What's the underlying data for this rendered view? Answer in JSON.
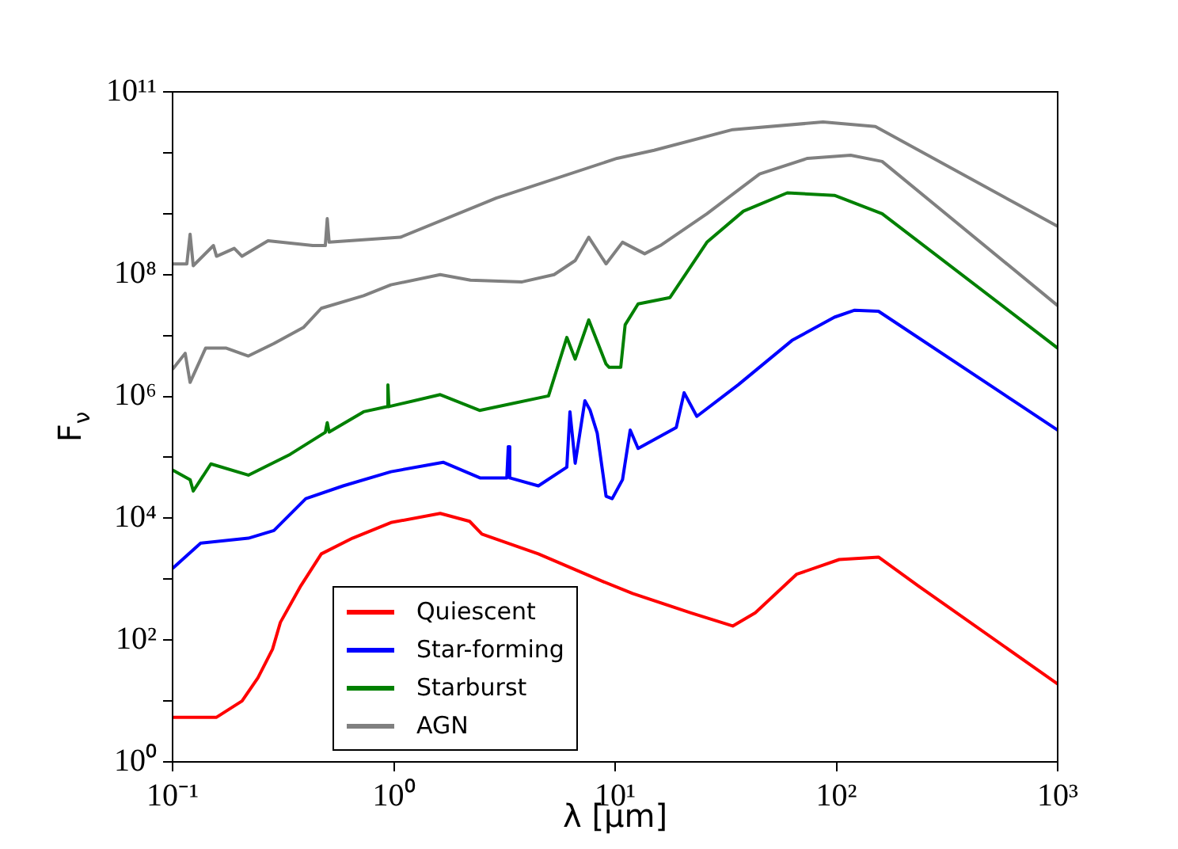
{
  "chart_data": {
    "type": "line",
    "xlabel": "λ [μm]",
    "ylabel": "F$_{ν}$",
    "log": "xy",
    "grid": false,
    "legend": "bottom left",
    "line_style": "solid",
    "xlim": [
      0.1,
      1000
    ],
    "ylim": [
      1,
      100000000000
    ],
    "xticks": [
      {
        "value": 0.1,
        "label": "10⁻¹"
      },
      {
        "value": 1,
        "label": "10⁰"
      },
      {
        "value": 10,
        "label": "10¹"
      },
      {
        "value": 100,
        "label": "10²"
      },
      {
        "value": 1000,
        "label": "10³"
      }
    ],
    "yticks": [
      {
        "value": 1,
        "label": "10⁰"
      },
      {
        "value": 10,
        "label": null
      },
      {
        "value": 100,
        "label": "10²"
      },
      {
        "value": 1000,
        "label": null
      },
      {
        "value": 10000,
        "label": "10⁴"
      },
      {
        "value": 100000,
        "label": null
      },
      {
        "value": 1000000,
        "label": "10⁶"
      },
      {
        "value": 10000000,
        "label": null
      },
      {
        "value": 100000000,
        "label": "10⁸"
      },
      {
        "value": 1000000000,
        "label": null
      },
      {
        "value": 10000000000,
        "label": null
      },
      {
        "value": 100000000000,
        "label": "10¹¹"
      }
    ],
    "series": [
      {
        "name": "Quiescent",
        "color": "#ff0000",
        "x": [
          0.1,
          0.141,
          0.158,
          0.206,
          0.243,
          0.283,
          0.307,
          0.38,
          0.47,
          0.65,
          0.97,
          1.62,
          2.2,
          2.5,
          4.5,
          8.7,
          12,
          22,
          34,
          43,
          66,
          103,
          155,
          234,
          1000
        ],
        "values": [
          5.4,
          5.4,
          5.4,
          10,
          24,
          71,
          195,
          780,
          2600,
          4700,
          8500,
          12000,
          8900,
          5500,
          2600,
          930,
          580,
          280,
          170,
          280,
          1200,
          2100,
          2300,
          780,
          19
        ]
      },
      {
        "name": "Star-forming",
        "color": "#0000ff",
        "x": [
          0.1,
          0.134,
          0.22,
          0.287,
          0.4,
          0.59,
          0.97,
          1.67,
          2.45,
          3.24,
          3.29,
          3.34,
          4.5,
          6.05,
          6.25,
          6.6,
          7.3,
          7.7,
          8.3,
          9.1,
          9.7,
          10.8,
          11.7,
          12.7,
          18.9,
          20.5,
          23.4,
          36,
          63,
          98,
          121,
          155,
          1000
        ],
        "values": [
          1500,
          3900,
          4700,
          6300,
          21000,
          34000,
          58000,
          83000,
          46000,
          46000,
          150000,
          46000,
          34000,
          69000,
          560000,
          80000,
          850000,
          600000,
          250000,
          23000,
          21000,
          43000,
          280000,
          140000,
          310000,
          1150000,
          470000,
          1550000,
          8300000,
          20000000,
          26000000,
          25000000,
          280000
        ]
      },
      {
        "name": "Starburst",
        "color": "#008000",
        "x": [
          0.1,
          0.12,
          0.124,
          0.149,
          0.22,
          0.34,
          0.49,
          0.5,
          0.51,
          0.73,
          0.93,
          0.94,
          0.95,
          1.62,
          2.44,
          5,
          6.05,
          6.6,
          7.6,
          9.1,
          9.4,
          10.6,
          11.1,
          12.7,
          17.7,
          26,
          38,
          60,
          98,
          161,
          1000
        ],
        "values": [
          62000,
          43000,
          28000,
          78000,
          51000,
          112000,
          257000,
          370000,
          260000,
          560000,
          680000,
          1550000,
          680000,
          1070000,
          590000,
          1020000,
          9300000,
          4100000,
          18000000,
          3400000,
          3000000,
          3000000,
          15000000,
          33000000,
          42000000,
          340000000,
          1100000000,
          2200000000,
          2000000000,
          1000000000,
          6200000
        ]
      },
      {
        "name": "AGN",
        "color": "#808080",
        "x": [
          0.1,
          0.114,
          0.12,
          0.141,
          0.175,
          0.22,
          0.287,
          0.39,
          0.47,
          0.73,
          0.97,
          1.62,
          2.22,
          3.8,
          5.3,
          6.6,
          7.6,
          9.1,
          10.8,
          13.6,
          16,
          26,
          45,
          74,
          116,
          161,
          1000
        ],
        "values": [
          2800000,
          5100000,
          1700000,
          6200000,
          6200000,
          4600000,
          7400000,
          13500000,
          28000000,
          45000000,
          68000000,
          100000000,
          81000000,
          76000000,
          100000000,
          170000000,
          410000000,
          150000000,
          340000000,
          220000000,
          300000000,
          1000000000,
          4500000000,
          8100000000,
          9100000000,
          7200000000,
          31000000
        ]
      },
      {
        "color": "#808080",
        "x": [
          0.1,
          0.116,
          0.12,
          0.124,
          0.153,
          0.158,
          0.19,
          0.206,
          0.27,
          0.43,
          0.49,
          0.5,
          0.51,
          1.07,
          2.9,
          10.2,
          15,
          34,
          87,
          150,
          1000
        ],
        "values": [
          150000000,
          150000000,
          460000000,
          140000000,
          300000000,
          200000000,
          270000000,
          200000000,
          360000000,
          300000000,
          300000000,
          830000000,
          340000000,
          410000000,
          1800000000,
          8100000000,
          11000000000,
          24000000000,
          32000000000,
          27000000000,
          620000000
        ]
      }
    ]
  }
}
